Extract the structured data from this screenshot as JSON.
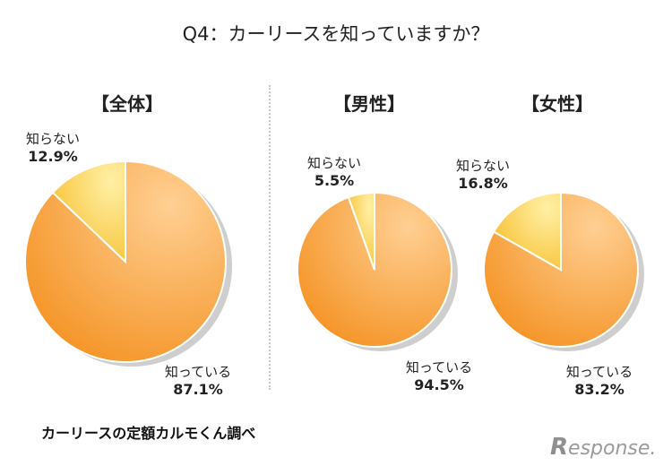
{
  "title": "Q4：カーリースを知っていますか？",
  "source": "カーリースの定額カルモくん調べ",
  "logo": "Response.",
  "colors": {
    "known_light": "#ffcf92",
    "known_dark": "#f5962a",
    "unknown_light": "#fff0a6",
    "unknown_dark": "#f8c338",
    "divider": "#ffffff",
    "shadow": "#bdbdbd"
  },
  "chart_data": [
    {
      "type": "pie",
      "title": "【全体】",
      "categories": [
        "知っている",
        "知らない"
      ],
      "values": [
        87.1,
        12.9
      ],
      "value_labels": [
        "87.1%",
        "12.9%"
      ]
    },
    {
      "type": "pie",
      "title": "【男性】",
      "categories": [
        "知っている",
        "知らない"
      ],
      "values": [
        94.5,
        5.5
      ],
      "value_labels": [
        "94.5%",
        "5.5%"
      ]
    },
    {
      "type": "pie",
      "title": "【女性】",
      "categories": [
        "知っている",
        "知らない"
      ],
      "values": [
        83.2,
        16.8
      ],
      "value_labels": [
        "83.2%",
        "16.8%"
      ]
    }
  ]
}
